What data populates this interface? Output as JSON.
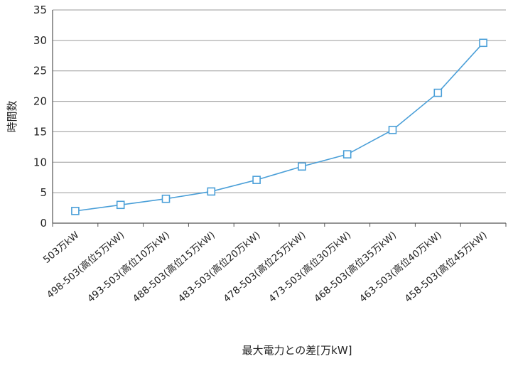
{
  "chart_data": {
    "type": "line",
    "title": "",
    "xlabel": "最大電力との差[万kW]",
    "ylabel": "時間数",
    "ylim": [
      0,
      35
    ],
    "yticks": [
      0,
      5,
      10,
      15,
      20,
      25,
      30,
      35
    ],
    "grid": true,
    "legend": "none",
    "categories": [
      "503万kW",
      "498-503(高位5万kW)",
      "493-503(高位10万kW)",
      "488-503(高位15万kW)",
      "483-503(高位20万kW)",
      "478-503(高位25万kW)",
      "473-503(高位30万kW)",
      "468-503(高位35万kW)",
      "463-503(高位40万kW)",
      "458-503(高位45万kW)"
    ],
    "series": [
      {
        "values": [
          2,
          3,
          4,
          5.2,
          7.1,
          9.3,
          11.3,
          15.3,
          21.4,
          29.6
        ],
        "color": "#4a9fd8",
        "marker": "square"
      }
    ]
  }
}
